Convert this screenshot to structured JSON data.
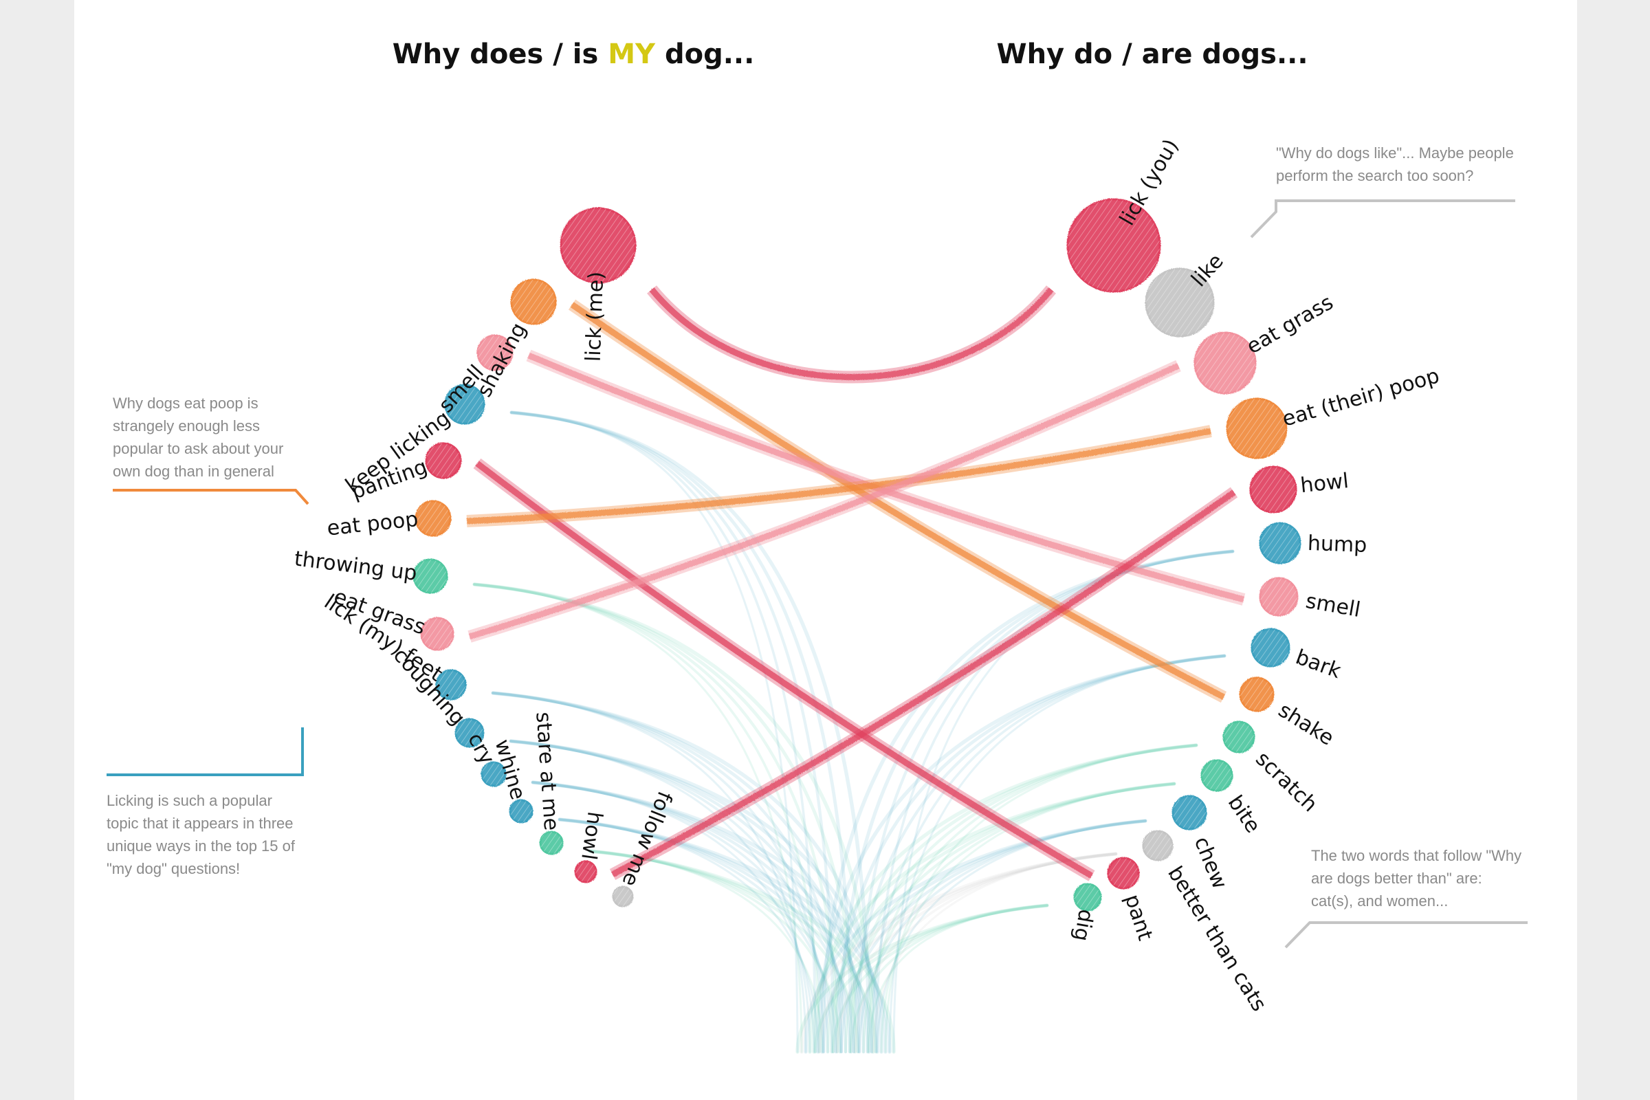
{
  "titles": {
    "left_prefix": "Why does / is ",
    "left_highlight": "MY",
    "left_suffix": " dog...",
    "right": "Why do / are dogs..."
  },
  "colors": {
    "red": "#e0405e",
    "orange": "#f08a3c",
    "pink": "#f2909c",
    "blue": "#3aa0bf",
    "teal": "#4fc79f",
    "gray": "#c4c4c4",
    "highlight": "#d4c814",
    "note_text": "#8a8a8a"
  },
  "left_topics": [
    {
      "label": "lick (me)",
      "color": "red"
    },
    {
      "label": "shaking",
      "color": "orange"
    },
    {
      "label": "smell",
      "color": "pink"
    },
    {
      "label": "keep licking",
      "color": "blue"
    },
    {
      "label": "panting",
      "color": "red"
    },
    {
      "label": "eat poop",
      "color": "orange"
    },
    {
      "label": "throwing up",
      "color": "teal"
    },
    {
      "label": "eat grass",
      "color": "pink"
    },
    {
      "label": "lick (my) feet",
      "color": "blue"
    },
    {
      "label": "coughing",
      "color": "blue"
    },
    {
      "label": "cry",
      "color": "blue"
    },
    {
      "label": "whine",
      "color": "blue"
    },
    {
      "label": "stare at me",
      "color": "teal"
    },
    {
      "label": "howl",
      "color": "red"
    },
    {
      "label": "follow me",
      "color": "gray"
    }
  ],
  "right_topics": [
    {
      "label": "lick (you)",
      "color": "red"
    },
    {
      "label": "like",
      "color": "gray"
    },
    {
      "label": "eat grass",
      "color": "pink"
    },
    {
      "label": "eat (their) poop",
      "color": "orange"
    },
    {
      "label": "howl",
      "color": "red"
    },
    {
      "label": "hump",
      "color": "blue"
    },
    {
      "label": "smell",
      "color": "pink"
    },
    {
      "label": "bark",
      "color": "blue"
    },
    {
      "label": "shake",
      "color": "orange"
    },
    {
      "label": "scratch",
      "color": "teal"
    },
    {
      "label": "bite",
      "color": "teal"
    },
    {
      "label": "chew",
      "color": "blue"
    },
    {
      "label": "better than cats",
      "color": "gray"
    },
    {
      "label": "pant",
      "color": "red"
    },
    {
      "label": "dig",
      "color": "teal"
    }
  ],
  "annotations": {
    "like_note": [
      "\"Why do dogs like\"... Maybe people",
      "perform the search too soon?"
    ],
    "poop_note": [
      "Why dogs eat poop is",
      "strangely enough less",
      "popular to ask about your",
      "own dog than in general"
    ],
    "licking_note": [
      "Licking is such a popular",
      "topic that it appears in three",
      "unique ways in the top 15 of",
      "\"my dog\" questions!"
    ],
    "better_note": [
      "The two words that follow \"Why",
      "are dogs better than\" are:",
      "cat(s), and women..."
    ]
  },
  "connections": [
    {
      "from": "lick (me)",
      "to": "lick (you)",
      "color": "red"
    },
    {
      "from": "shaking",
      "to": "shake",
      "color": "orange"
    },
    {
      "from": "smell",
      "to": "smell",
      "color": "pink"
    },
    {
      "from": "panting",
      "to": "pant",
      "color": "red"
    },
    {
      "from": "eat poop",
      "to": "eat (their) poop",
      "color": "orange"
    },
    {
      "from": "eat grass",
      "to": "eat grass",
      "color": "pink"
    },
    {
      "from": "howl",
      "to": "howl",
      "color": "red"
    }
  ]
}
